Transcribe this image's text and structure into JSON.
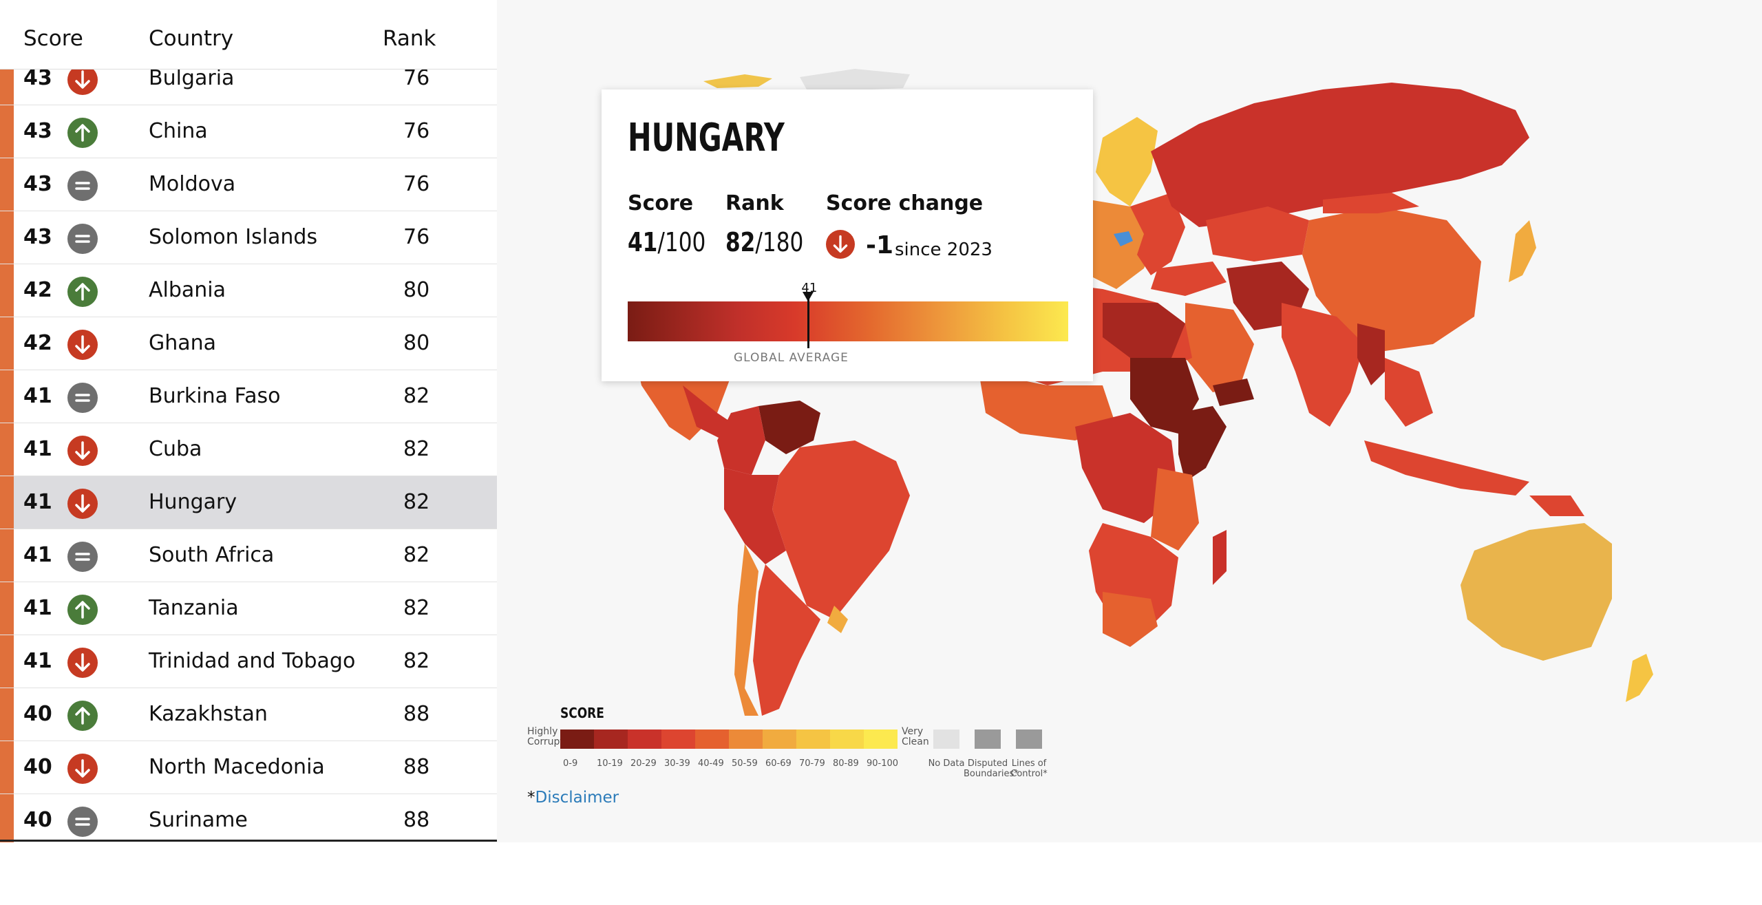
{
  "table": {
    "headers": {
      "score": "Score",
      "country": "Country",
      "rank": "Rank"
    },
    "rows": [
      {
        "score": "43",
        "change": "down",
        "country": "Bulgaria",
        "rank": "76",
        "selected": false
      },
      {
        "score": "43",
        "change": "up",
        "country": "China",
        "rank": "76",
        "selected": false
      },
      {
        "score": "43",
        "change": "same",
        "country": "Moldova",
        "rank": "76",
        "selected": false
      },
      {
        "score": "43",
        "change": "same",
        "country": "Solomon Islands",
        "rank": "76",
        "selected": false
      },
      {
        "score": "42",
        "change": "up",
        "country": "Albania",
        "rank": "80",
        "selected": false
      },
      {
        "score": "42",
        "change": "down",
        "country": "Ghana",
        "rank": "80",
        "selected": false
      },
      {
        "score": "41",
        "change": "same",
        "country": "Burkina Faso",
        "rank": "82",
        "selected": false
      },
      {
        "score": "41",
        "change": "down",
        "country": "Cuba",
        "rank": "82",
        "selected": false
      },
      {
        "score": "41",
        "change": "down",
        "country": "Hungary",
        "rank": "82",
        "selected": true
      },
      {
        "score": "41",
        "change": "same",
        "country": "South Africa",
        "rank": "82",
        "selected": false
      },
      {
        "score": "41",
        "change": "up",
        "country": "Tanzania",
        "rank": "82",
        "selected": false
      },
      {
        "score": "41",
        "change": "down",
        "country": "Trinidad and Tobago",
        "rank": "82",
        "selected": false
      },
      {
        "score": "40",
        "change": "up",
        "country": "Kazakhstan",
        "rank": "88",
        "selected": false
      },
      {
        "score": "40",
        "change": "down",
        "country": "North Macedonia",
        "rank": "88",
        "selected": false
      },
      {
        "score": "40",
        "change": "same",
        "country": "Suriname",
        "rank": "88",
        "selected": false
      }
    ]
  },
  "card": {
    "title": "HUNGARY",
    "score_label": "Score",
    "score_value": "41",
    "score_max": "/100",
    "rank_label": "Rank",
    "rank_value": "82",
    "rank_max": "/180",
    "change_label": "Score change",
    "change_value": "-1",
    "change_since": "since 2023",
    "change_direction": "down",
    "marker_value": "41",
    "marker_fraction": 0.41,
    "global_average_label": "GLOBAL AVERAGE"
  },
  "legend": {
    "title": "SCORE",
    "left_label": [
      "Highly",
      "Corrupt"
    ],
    "right_label": [
      "Very",
      "Clean"
    ],
    "bins": [
      "0-9",
      "10-19",
      "20-29",
      "30-39",
      "40-49",
      "50-59",
      "60-69",
      "70-79",
      "80-89",
      "90-100"
    ],
    "bin_colors": [
      "#7a1c14",
      "#a72720",
      "#c9322a",
      "#dd4530",
      "#e5612f",
      "#ec8a38",
      "#f1ab3f",
      "#f5c443",
      "#f8d848",
      "#fce94f"
    ],
    "extras": [
      {
        "label": "No Data",
        "color": "#e2e2e2"
      },
      {
        "label": "Disputed Boundaries*",
        "color": "#9a9a9a"
      },
      {
        "label": "Lines of Control*",
        "color": "#9a9a9a"
      }
    ]
  },
  "disclaimer": {
    "prefix": "*",
    "link": "Disclaimer"
  },
  "colors": {
    "up": "#4a7c3a",
    "down": "#c63a22",
    "same": "#6f6f6f",
    "score_bar": "#e0703b",
    "selected_bg": "#dcdcdf"
  }
}
